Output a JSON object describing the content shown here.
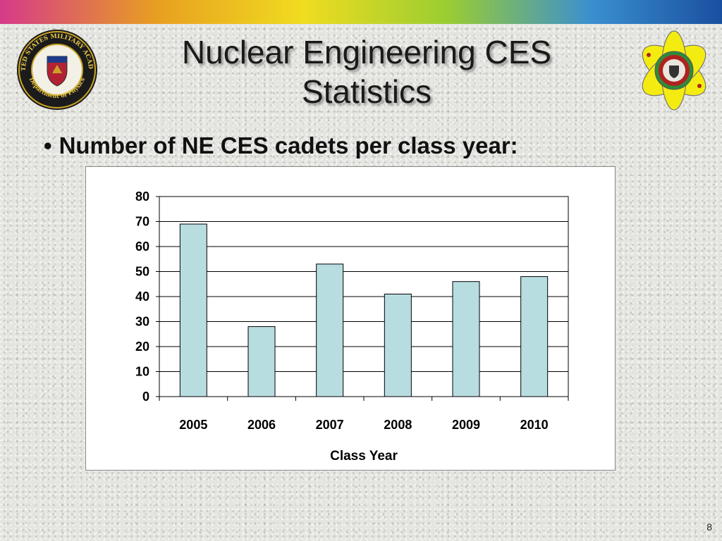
{
  "slide": {
    "title_line1": "Nuclear Engineering CES",
    "title_line2": "Statistics",
    "bullet_marker": "•",
    "bullet_text": "Number of NE CES cadets per class year:",
    "page_number": "8"
  },
  "logos": {
    "left": {
      "ring_text": "UNITED STATES MILITARY ACADEMY",
      "bottom_text": "Department of Physics",
      "icon": "usma-physics-seal-icon"
    },
    "right": {
      "icon": "atom-emblem-icon"
    }
  },
  "chart_data": {
    "type": "bar",
    "categories": [
      "2005",
      "2006",
      "2007",
      "2008",
      "2009",
      "2010"
    ],
    "values": [
      69,
      28,
      53,
      41,
      46,
      48
    ],
    "title": "",
    "xlabel": "Class Year",
    "ylabel": "",
    "ylim": [
      0,
      80
    ],
    "yticks": [
      "0",
      "10",
      "20",
      "30",
      "40",
      "50",
      "60",
      "70",
      "80"
    ],
    "grid": true,
    "legend": "none",
    "bar_color": "#b8dde0"
  }
}
